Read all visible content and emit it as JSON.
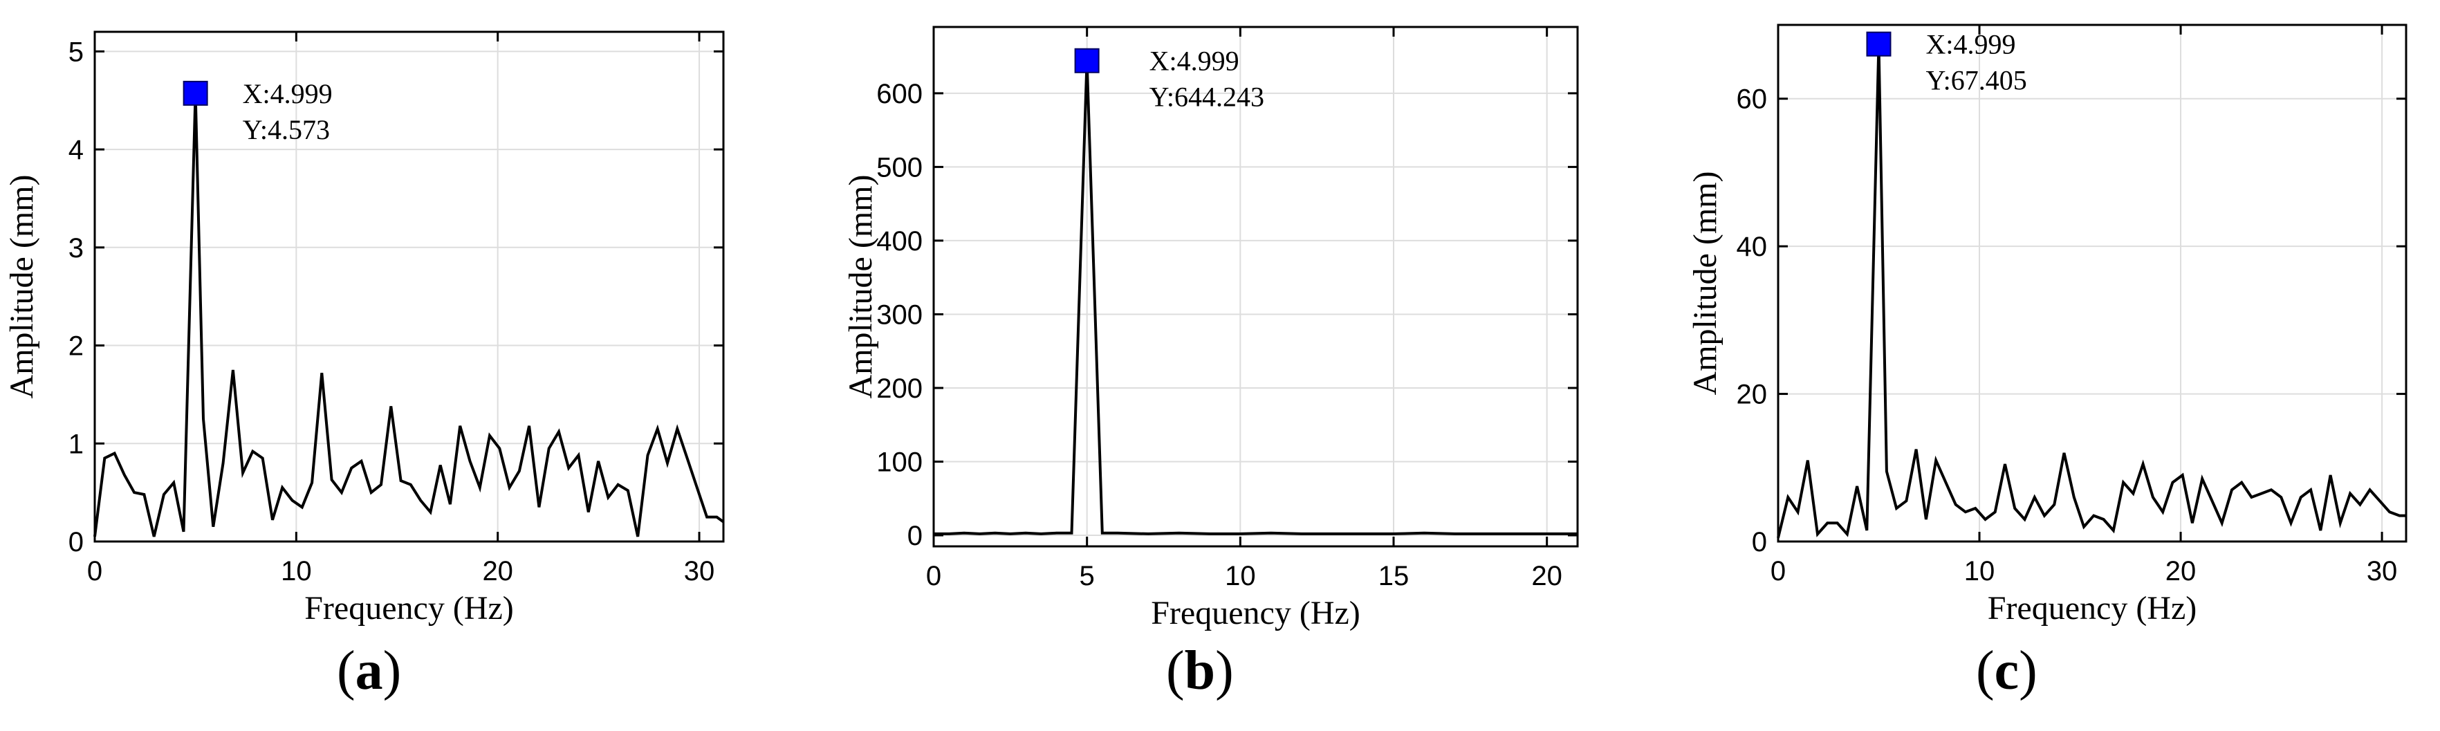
{
  "chart_data": [
    {
      "type": "line",
      "panel_label": "a",
      "xlabel": "Frequency (Hz)",
      "ylabel": "Amplitude (mm)",
      "xlim": [
        0,
        31.2
      ],
      "ylim": [
        0,
        5.2
      ],
      "xticks": [
        0,
        10,
        20,
        30
      ],
      "yticks": [
        0,
        1,
        2,
        3,
        4,
        5
      ],
      "grid": true,
      "line_color": "#000000",
      "x": [
        0,
        0.49,
        0.98,
        1.47,
        1.96,
        2.45,
        2.94,
        3.43,
        3.92,
        4.41,
        4.999,
        5.39,
        5.88,
        6.37,
        6.86,
        7.35,
        7.84,
        8.33,
        8.82,
        9.31,
        9.8,
        10.29,
        10.78,
        11.27,
        11.76,
        12.25,
        12.74,
        13.23,
        13.72,
        14.21,
        14.7,
        15.19,
        15.68,
        16.17,
        16.66,
        17.15,
        17.64,
        18.13,
        18.62,
        19.11,
        19.6,
        20.09,
        20.58,
        21.07,
        21.56,
        22.05,
        22.54,
        23.03,
        23.52,
        24.01,
        24.5,
        24.99,
        25.48,
        25.97,
        26.46,
        26.95,
        27.44,
        27.93,
        28.42,
        28.91,
        29.4,
        29.89,
        30.38,
        30.87,
        31.2
      ],
      "y": [
        0.05,
        0.85,
        0.9,
        0.68,
        0.5,
        0.48,
        0.05,
        0.48,
        0.6,
        0.1,
        4.573,
        1.25,
        0.15,
        0.8,
        1.75,
        0.7,
        0.92,
        0.85,
        0.22,
        0.55,
        0.42,
        0.35,
        0.6,
        1.72,
        0.63,
        0.5,
        0.75,
        0.82,
        0.5,
        0.58,
        1.38,
        0.62,
        0.58,
        0.42,
        0.3,
        0.78,
        0.38,
        1.18,
        0.82,
        0.55,
        1.08,
        0.95,
        0.55,
        0.72,
        1.18,
        0.35,
        0.95,
        1.12,
        0.75,
        0.88,
        0.3,
        0.82,
        0.45,
        0.58,
        0.52,
        0.05,
        0.88,
        1.15,
        0.8,
        1.15,
        0.85,
        0.55,
        0.25,
        0.25,
        0.2
      ],
      "marker": {
        "x": 4.999,
        "y": 4.573,
        "color": "#0000ff",
        "label_x": "X:4.999",
        "label_y": "Y:4.573"
      },
      "caption": "(a)"
    },
    {
      "type": "line",
      "panel_label": "b",
      "xlabel": "Frequency (Hz)",
      "ylabel": "Amplitude (mm)",
      "xlim": [
        0,
        21
      ],
      "ylim": [
        -15,
        690
      ],
      "xticks": [
        0,
        5,
        10,
        15,
        20
      ],
      "yticks": [
        0,
        100,
        200,
        300,
        400,
        500,
        600
      ],
      "grid": true,
      "line_color": "#000000",
      "x": [
        0,
        0.5,
        1.0,
        1.5,
        2.0,
        2.5,
        3.0,
        3.5,
        4.0,
        4.5,
        4.999,
        5.5,
        6.0,
        7.0,
        8.0,
        9.0,
        10.0,
        11.0,
        12.0,
        13.0,
        14.0,
        15.0,
        16.0,
        17.0,
        18.0,
        19.0,
        20.0,
        21.0
      ],
      "y": [
        2,
        2,
        3,
        2,
        3,
        2,
        3,
        2,
        3,
        3,
        644.243,
        3,
        3,
        2,
        3,
        2,
        2,
        3,
        2,
        2,
        2,
        2,
        3,
        2,
        2,
        2,
        2,
        2
      ],
      "marker": {
        "x": 4.999,
        "y": 644.243,
        "color": "#0000ff",
        "label_x": "X:4.999",
        "label_y": "Y:644.243"
      },
      "caption": "(b)"
    },
    {
      "type": "line",
      "panel_label": "c",
      "xlabel": "Frequency (Hz)",
      "ylabel": "Amplitude (mm)",
      "xlim": [
        0,
        31.2
      ],
      "ylim": [
        0,
        70
      ],
      "xticks": [
        0,
        10,
        20,
        30
      ],
      "yticks": [
        0,
        20,
        40,
        60
      ],
      "grid": true,
      "line_color": "#000000",
      "x": [
        0,
        0.49,
        0.98,
        1.47,
        1.96,
        2.45,
        2.94,
        3.43,
        3.92,
        4.41,
        4.999,
        5.39,
        5.88,
        6.37,
        6.86,
        7.35,
        7.84,
        8.33,
        8.82,
        9.31,
        9.8,
        10.29,
        10.78,
        11.27,
        11.76,
        12.25,
        12.74,
        13.23,
        13.72,
        14.21,
        14.7,
        15.19,
        15.68,
        16.17,
        16.66,
        17.15,
        17.64,
        18.13,
        18.62,
        19.11,
        19.6,
        20.09,
        20.58,
        21.07,
        21.56,
        22.05,
        22.54,
        23.03,
        23.52,
        24.01,
        24.5,
        24.99,
        25.48,
        25.97,
        26.46,
        26.95,
        27.44,
        27.93,
        28.42,
        28.91,
        29.4,
        29.89,
        30.38,
        30.87,
        31.2
      ],
      "y": [
        0.5,
        6,
        4,
        11,
        1,
        2.5,
        2.5,
        1,
        7.5,
        1.5,
        67.405,
        9.5,
        4.5,
        5.5,
        12.5,
        3,
        11,
        8,
        5,
        4,
        4.5,
        3,
        4,
        10.5,
        4.5,
        3,
        6,
        3.5,
        5,
        12,
        6,
        2,
        3.5,
        3,
        1.5,
        8,
        6.5,
        10.5,
        6,
        4,
        8,
        9,
        2.5,
        8.5,
        5.5,
        2.5,
        7,
        8,
        6,
        6.5,
        7,
        6,
        2.5,
        6,
        7,
        1.5,
        9,
        2.5,
        6.5,
        5,
        7,
        5.5,
        4,
        3.5,
        3.5
      ],
      "marker": {
        "x": 4.999,
        "y": 67.405,
        "color": "#0000ff",
        "label_x": "X:4.999",
        "label_y": "Y:67.405"
      },
      "caption": "(c)"
    }
  ]
}
